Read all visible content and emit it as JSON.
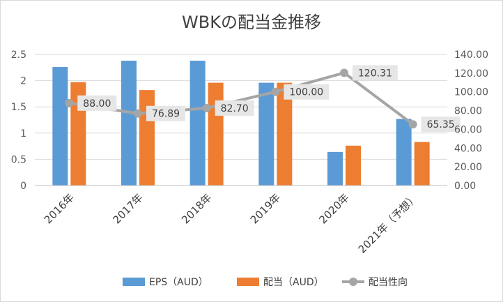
{
  "chart_data": {
    "type": "bar",
    "title": "WBKの配当金推移",
    "categories": [
      "2016年",
      "2017年",
      "2018年",
      "2019年",
      "2020年",
      "2021年（予想）"
    ],
    "series": [
      {
        "name": "EPS（AUD）",
        "type": "bar",
        "axis": "left",
        "color": "#5b9bd5",
        "values": [
          2.26,
          2.38,
          2.38,
          1.96,
          0.64,
          1.27
        ]
      },
      {
        "name": "配当（AUD）",
        "type": "bar",
        "axis": "left",
        "color": "#ed7d31",
        "values": [
          1.97,
          1.82,
          1.96,
          1.96,
          0.76,
          0.83
        ]
      },
      {
        "name": "配当性向",
        "type": "line",
        "axis": "right",
        "color": "#a5a5a5",
        "values": [
          88.0,
          76.89,
          82.7,
          100.0,
          120.31,
          65.35
        ],
        "labels": [
          "88.00",
          "76.89",
          "82.70",
          "100.00",
          "120.31",
          "65.35"
        ]
      }
    ],
    "y_left": {
      "min": 0,
      "max": 2.5,
      "ticks": [
        "0",
        "0.5",
        "1",
        "1.5",
        "2",
        "2.5"
      ]
    },
    "y_right": {
      "min": 0,
      "max": 140,
      "ticks": [
        "0.00",
        "20.00",
        "40.00",
        "60.00",
        "80.00",
        "100.00",
        "120.00",
        "140.00"
      ]
    },
    "grid": true,
    "legend": "bottom"
  }
}
